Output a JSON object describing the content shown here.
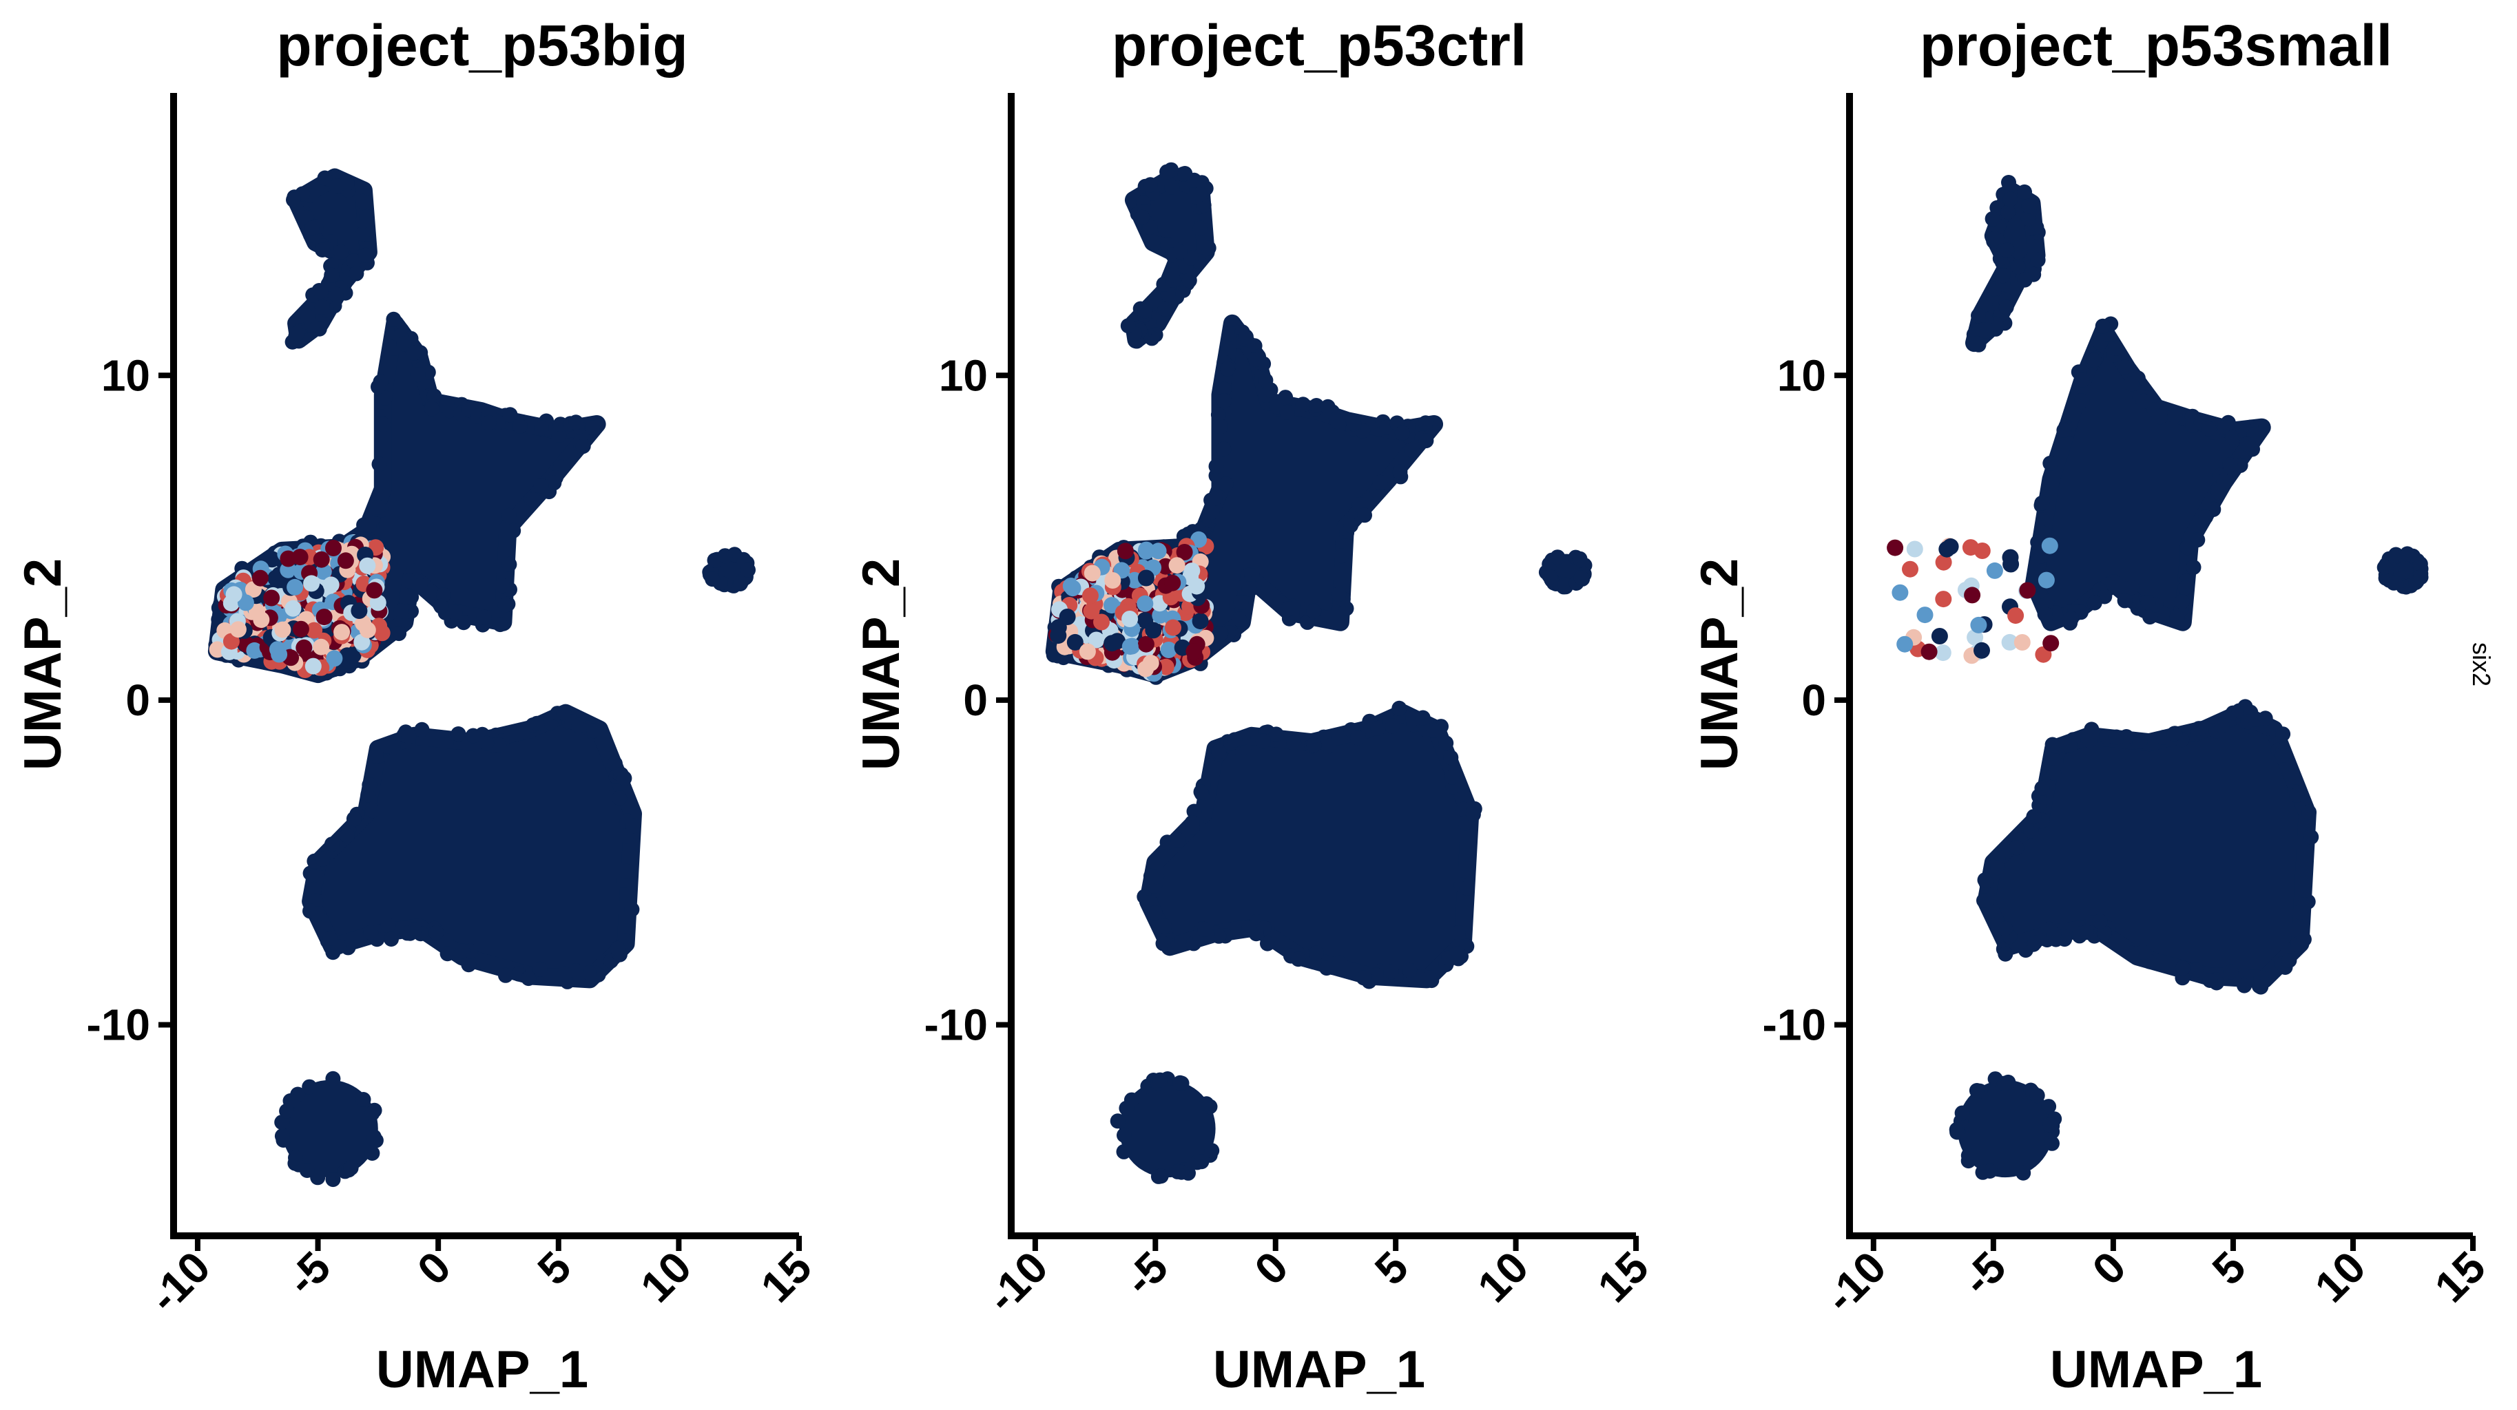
{
  "chart_data": [
    {
      "type": "scatter",
      "title": "project_p53big",
      "xlabel": "UMAP_1",
      "ylabel": "UMAP_2",
      "xlim": [
        -11,
        15
      ],
      "ylim": [
        -16.5,
        18.7
      ],
      "xticks": [
        "-10",
        "-5",
        "0",
        "5",
        "10",
        "15"
      ],
      "yticks": [
        "10",
        "0",
        "-10"
      ],
      "grid": false,
      "legend": "none",
      "clusters": [
        {
          "shape": "poly",
          "level": 0,
          "points": [
            [
              -5.8,
              11.1
            ],
            [
              -4.9,
              11.6
            ],
            [
              -3.9,
              12.9
            ],
            [
              -2.9,
              13.8
            ],
            [
              -3.1,
              15.7
            ],
            [
              -4.3,
              16.1
            ],
            [
              -5.9,
              15.4
            ],
            [
              -5.1,
              14.1
            ],
            [
              -4.0,
              13.7
            ],
            [
              -4.6,
              12.6
            ],
            [
              -5.9,
              11.6
            ]
          ]
        },
        {
          "shape": "poly",
          "level": 0,
          "points": [
            [
              -9.2,
              1.5
            ],
            [
              -8.9,
              3.4
            ],
            [
              -6.5,
              4.6
            ],
            [
              -4.0,
              4.7
            ],
            [
              -3.0,
              5.2
            ],
            [
              -2.3,
              6.5
            ],
            [
              -2.3,
              9.4
            ],
            [
              -1.8,
              11.6
            ],
            [
              -0.8,
              10.6
            ],
            [
              -0.3,
              9.2
            ],
            [
              1.8,
              8.9
            ],
            [
              3.0,
              8.6
            ],
            [
              5.0,
              8.3
            ],
            [
              6.6,
              8.5
            ],
            [
              4.7,
              6.8
            ],
            [
              2.9,
              5.3
            ],
            [
              2.7,
              2.4
            ],
            [
              0.6,
              2.7
            ],
            [
              -1.1,
              3.8
            ],
            [
              -1.4,
              2.4
            ],
            [
              -3.3,
              1.3
            ],
            [
              -5.0,
              0.8
            ],
            [
              -6.5,
              1.1
            ]
          ]
        },
        {
          "shape": "poly",
          "level": 0,
          "points": [
            [
              -5.3,
              -6.2
            ],
            [
              -5.0,
              -5.0
            ],
            [
              -3.0,
              -3.5
            ],
            [
              -2.5,
              -1.5
            ],
            [
              -1.0,
              -1.1
            ],
            [
              1.5,
              -1.3
            ],
            [
              3.8,
              -0.9
            ],
            [
              5.3,
              -0.4
            ],
            [
              6.7,
              -0.9
            ],
            [
              8.1,
              -3.5
            ],
            [
              7.8,
              -7.5
            ],
            [
              6.3,
              -8.6
            ],
            [
              3.9,
              -8.5
            ],
            [
              1.0,
              -7.9
            ],
            [
              -0.8,
              -7.0
            ],
            [
              -2.6,
              -7.2
            ],
            [
              -4.4,
              -7.6
            ]
          ]
        },
        {
          "shape": "ellipse",
          "level": 0,
          "cx": -4.5,
          "cy": -13.2,
          "rx": 2.0,
          "ry": 1.5
        },
        {
          "shape": "ellipse",
          "level": 0,
          "cx": 12.1,
          "cy": 4.0,
          "rx": 0.8,
          "ry": 0.5
        }
      ],
      "highlight": {
        "x": [
          -9.2,
          -2.3
        ],
        "y": [
          0.6,
          4.9
        ],
        "levels": [
          0,
          0.2,
          0.4,
          0.6,
          0.8,
          1
        ],
        "density": "high"
      }
    },
    {
      "type": "scatter",
      "title": "project_p53ctrl",
      "xlabel": "UMAP_1",
      "ylabel": "UMAP_2",
      "xlim": [
        -11,
        15
      ],
      "ylim": [
        -16.5,
        18.7
      ],
      "xticks": [
        "-10",
        "-5",
        "0",
        "5",
        "10",
        "15"
      ],
      "yticks": [
        "10",
        "0",
        "-10"
      ],
      "grid": false,
      "legend": "none",
      "clusters": [
        {
          "shape": "poly",
          "level": 0,
          "points": [
            [
              -5.8,
              11.1
            ],
            [
              -4.9,
              11.6
            ],
            [
              -3.9,
              12.9
            ],
            [
              -2.9,
              13.8
            ],
            [
              -3.1,
              15.7
            ],
            [
              -4.3,
              16.1
            ],
            [
              -5.9,
              15.4
            ],
            [
              -5.1,
              14.1
            ],
            [
              -4.0,
              13.7
            ],
            [
              -4.6,
              12.6
            ],
            [
              -5.9,
              11.6
            ]
          ]
        },
        {
          "shape": "poly",
          "level": 0,
          "points": [
            [
              -9.2,
              1.5
            ],
            [
              -8.9,
              3.4
            ],
            [
              -6.5,
              4.6
            ],
            [
              -4.0,
              4.7
            ],
            [
              -3.0,
              5.2
            ],
            [
              -2.3,
              6.5
            ],
            [
              -2.3,
              9.4
            ],
            [
              -1.8,
              11.6
            ],
            [
              -0.8,
              10.6
            ],
            [
              -0.3,
              9.2
            ],
            [
              1.8,
              8.9
            ],
            [
              3.0,
              8.6
            ],
            [
              5.0,
              8.3
            ],
            [
              6.6,
              8.5
            ],
            [
              4.7,
              6.8
            ],
            [
              2.9,
              5.3
            ],
            [
              2.7,
              2.4
            ],
            [
              0.6,
              2.7
            ],
            [
              -1.1,
              3.8
            ],
            [
              -1.4,
              2.4
            ],
            [
              -3.3,
              1.3
            ],
            [
              -5.0,
              0.8
            ],
            [
              -6.5,
              1.1
            ]
          ]
        },
        {
          "shape": "poly",
          "level": 0,
          "points": [
            [
              -5.3,
              -6.2
            ],
            [
              -5.0,
              -5.0
            ],
            [
              -3.0,
              -3.5
            ],
            [
              -2.5,
              -1.5
            ],
            [
              -1.0,
              -1.1
            ],
            [
              1.5,
              -1.3
            ],
            [
              3.8,
              -0.9
            ],
            [
              5.3,
              -0.4
            ],
            [
              6.7,
              -0.9
            ],
            [
              8.1,
              -3.5
            ],
            [
              7.8,
              -7.5
            ],
            [
              6.3,
              -8.6
            ],
            [
              3.9,
              -8.5
            ],
            [
              1.0,
              -7.9
            ],
            [
              -0.8,
              -7.0
            ],
            [
              -2.6,
              -7.2
            ],
            [
              -4.4,
              -7.6
            ]
          ]
        },
        {
          "shape": "ellipse",
          "level": 0,
          "cx": -4.5,
          "cy": -13.2,
          "rx": 2.0,
          "ry": 1.5
        },
        {
          "shape": "ellipse",
          "level": 0,
          "cx": 12.1,
          "cy": 4.0,
          "rx": 0.8,
          "ry": 0.5
        }
      ],
      "highlight": {
        "x": [
          -9.3,
          -2.9
        ],
        "y": [
          0.8,
          5.0
        ],
        "levels": [
          0,
          0.2,
          0.4,
          0.6,
          0.8,
          1
        ],
        "density": "high"
      }
    },
    {
      "type": "scatter",
      "title": "project_p53small",
      "xlabel": "UMAP_1",
      "ylabel": "UMAP_2",
      "xlim": [
        -11,
        15
      ],
      "ylim": [
        -16.5,
        18.7
      ],
      "xticks": [
        "-10",
        "-5",
        "0",
        "5",
        "10",
        "15"
      ],
      "yticks": [
        "10",
        "0",
        "-10"
      ],
      "grid": false,
      "legend": "none",
      "side_label": "six2",
      "clusters": [
        {
          "shape": "poly",
          "level": 0,
          "points": [
            [
              -5.8,
              11.0
            ],
            [
              -4.9,
              11.6
            ],
            [
              -4.0,
              12.9
            ],
            [
              -3.2,
              13.7
            ],
            [
              -3.4,
              15.3
            ],
            [
              -4.3,
              15.7
            ],
            [
              -5.0,
              14.3
            ],
            [
              -4.4,
              13.4
            ],
            [
              -5.5,
              11.9
            ]
          ]
        },
        {
          "shape": "poly",
          "level": 0,
          "points": [
            [
              -3.3,
              3.6
            ],
            [
              -2.6,
              6.8
            ],
            [
              -1.3,
              9.8
            ],
            [
              -0.4,
              11.4
            ],
            [
              0.6,
              10.2
            ],
            [
              1.8,
              9.0
            ],
            [
              3.5,
              8.6
            ],
            [
              5.0,
              8.3
            ],
            [
              6.2,
              8.4
            ],
            [
              4.6,
              6.7
            ],
            [
              3.2,
              4.9
            ],
            [
              2.9,
              2.4
            ],
            [
              1.3,
              2.8
            ],
            [
              0.0,
              3.6
            ],
            [
              -1.6,
              2.7
            ],
            [
              -2.6,
              2.4
            ]
          ]
        },
        {
          "shape": "poly",
          "level": 0,
          "points": [
            [
              -5.3,
              -6.2
            ],
            [
              -5.0,
              -5.0
            ],
            [
              -3.0,
              -3.5
            ],
            [
              -2.5,
              -1.5
            ],
            [
              -1.0,
              -1.1
            ],
            [
              1.5,
              -1.3
            ],
            [
              3.8,
              -0.9
            ],
            [
              5.3,
              -0.4
            ],
            [
              6.7,
              -0.9
            ],
            [
              8.1,
              -3.5
            ],
            [
              7.8,
              -7.5
            ],
            [
              6.3,
              -8.6
            ],
            [
              3.9,
              -8.5
            ],
            [
              1.0,
              -7.9
            ],
            [
              -0.8,
              -7.0
            ],
            [
              -2.6,
              -7.2
            ],
            [
              -4.4,
              -7.6
            ]
          ]
        },
        {
          "shape": "ellipse",
          "level": 0,
          "cx": -4.5,
          "cy": -13.2,
          "rx": 2.0,
          "ry": 1.5
        },
        {
          "shape": "ellipse",
          "level": 0,
          "cx": 12.1,
          "cy": 4.0,
          "rx": 0.8,
          "ry": 0.5
        }
      ],
      "highlight": {
        "x": [
          -9.3,
          -2.3
        ],
        "y": [
          1.3,
          4.8
        ],
        "levels": [
          0,
          0.2,
          0.4,
          0.6,
          0.8,
          1
        ],
        "density": "low"
      }
    }
  ],
  "colors": {
    "low": "#0b2452",
    "scale": [
      "#0b2452",
      "#4a8cc4",
      "#9ec8e2",
      "#e8eef4",
      "#f4a283",
      "#c63a3a",
      "#67001f"
    ],
    "axis": "#000000",
    "background": "#ffffff"
  }
}
